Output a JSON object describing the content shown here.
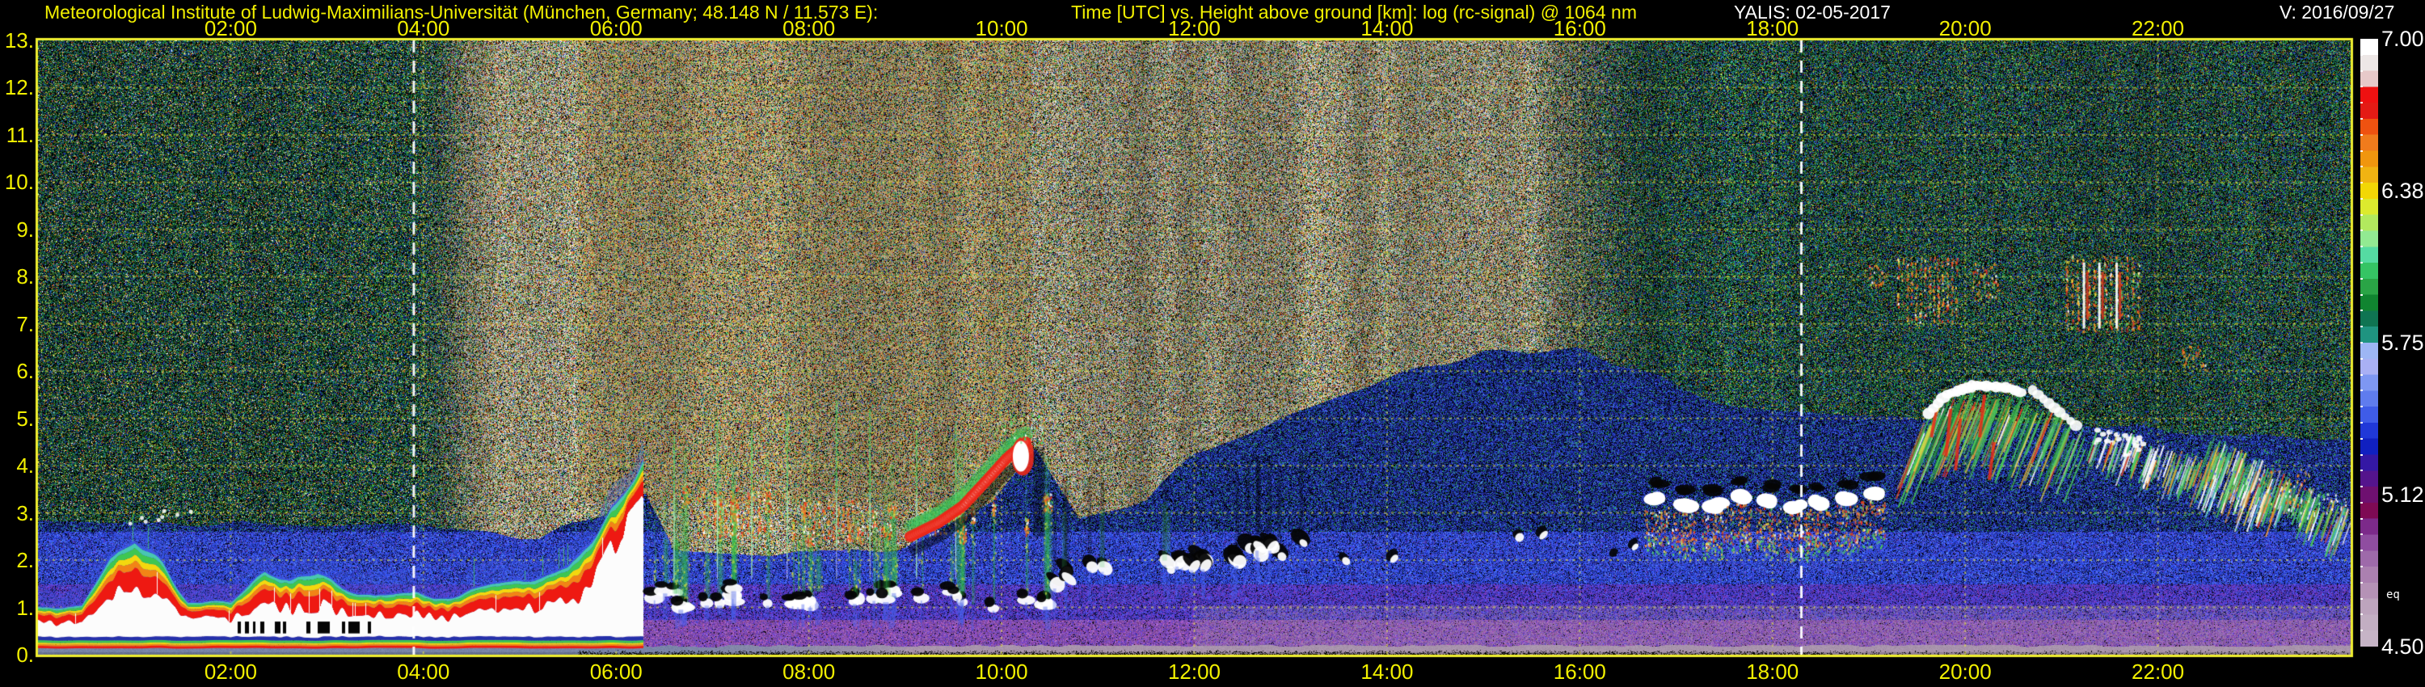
{
  "header": {
    "station_title": "Meteorological Institute of Ludwig-Maximilians-Universität (München, Germany; 48.148 N / 11.573 E):",
    "plot_title": "Time [UTC] vs. Height above ground [km]: log (rc-signal) @ 1064 nm",
    "instrument_label": "YALIS: 02-05-2017",
    "version_label": "V: 2016/09/27"
  },
  "colors": {
    "axis_yellow": "#f2f000",
    "text_white": "#ffffff",
    "background": "#000000",
    "grid": "rgba(240,240,70,0.55)",
    "sun_line": "#ffffff",
    "plot_border": "#f0ef30"
  },
  "chart_data": {
    "type": "heatmap",
    "title": "Time [UTC] vs. Height above ground [km]: log (rc-signal) @ 1064 nm",
    "instrument": "YALIS",
    "date": "02-05-2017",
    "x_axis": {
      "unit": "UTC",
      "range_hours": [
        0,
        24
      ],
      "tick_step_hours": 2,
      "tick_labels": [
        "02:00",
        "04:00",
        "06:00",
        "08:00",
        "10:00",
        "12:00",
        "14:00",
        "16:00",
        "18:00",
        "20:00",
        "22:00"
      ]
    },
    "y_axis": {
      "unit": "km",
      "range_km": [
        0,
        13
      ],
      "tick_labels": [
        "13.",
        "12.",
        "11.",
        "10.",
        "9.",
        "8.",
        "7.",
        "6.",
        "5.",
        "4.",
        "3.",
        "2.",
        "1.",
        "0."
      ]
    },
    "colorbar": {
      "quantity": "log (rc-signal) @ 1064 nm",
      "min": 4.5,
      "max": 7.0,
      "tick_labels": [
        "7.00",
        "6.38",
        "5.75",
        "5.12",
        "4.50"
      ],
      "side_label": "eq",
      "colors_top_to_bottom": [
        "#ffffff",
        "#ede7e6",
        "#e7c9c9",
        "#ee1111",
        "#e31b15",
        "#ef5210",
        "#f07b1c",
        "#f0960e",
        "#f0b312",
        "#f2d706",
        "#dcea2e",
        "#b2e95e",
        "#92ea92",
        "#55dba2",
        "#35c464",
        "#2aa446",
        "#108430",
        "#0f7452",
        "#1f9480",
        "#9db6f4",
        "#a9b0f4",
        "#7e97f2",
        "#5f7cee",
        "#3f5ce8",
        "#2038d8",
        "#1020c0",
        "#3418a4",
        "#54148c",
        "#6e1070",
        "#7e0a54",
        "#7c2a8a",
        "#8f4da0",
        "#9e6aaa",
        "#ab80b0",
        "#b592b6",
        "#bda4bd",
        "#c2aec2",
        "#c6b4c6"
      ]
    },
    "daylight": {
      "sunrise_utc": 3.9,
      "sunset_utc": 18.3
    },
    "grid": {
      "x_step_hours": 2,
      "y_step_km": 1,
      "style": "dashed-yellow"
    },
    "signal_top_km_by_hour": [
      [
        0,
        2.7
      ],
      [
        3.8,
        2.7
      ],
      [
        4.6,
        2.5
      ],
      [
        5.2,
        2.4
      ],
      [
        6.3,
        3.3
      ],
      [
        6.6,
        2.2
      ],
      [
        8,
        2.05
      ],
      [
        9.0,
        2.2
      ],
      [
        9.9,
        3.2
      ],
      [
        10.35,
        4.3
      ],
      [
        10.8,
        2.8
      ],
      [
        11.5,
        3.2
      ],
      [
        12,
        4.2
      ],
      [
        13,
        5.0
      ],
      [
        14,
        5.8
      ],
      [
        15,
        6.3
      ],
      [
        16,
        6.4
      ],
      [
        16.8,
        5.8
      ],
      [
        17.5,
        5.2
      ],
      [
        18.5,
        5.0
      ],
      [
        20,
        4.9
      ],
      [
        22,
        4.7
      ],
      [
        24,
        4.4
      ]
    ],
    "features": {
      "nocturnal_aerosol_layer": {
        "hours": [
          0,
          6.28
        ],
        "top_km": [
          [
            0,
            1.0
          ],
          [
            0.45,
            1.05
          ],
          [
            0.75,
            2.1
          ],
          [
            1.0,
            2.45
          ],
          [
            1.3,
            1.9
          ],
          [
            1.55,
            1.15
          ],
          [
            2.0,
            1.1
          ],
          [
            2.35,
            1.75
          ],
          [
            2.6,
            1.6
          ],
          [
            2.9,
            1.85
          ],
          [
            3.15,
            1.4
          ],
          [
            3.5,
            1.2
          ],
          [
            3.9,
            1.3
          ],
          [
            4.3,
            1.25
          ],
          [
            4.7,
            1.45
          ],
          [
            5.1,
            1.6
          ],
          [
            5.5,
            1.9
          ],
          [
            5.8,
            2.6
          ],
          [
            6.0,
            3.2
          ],
          [
            6.15,
            3.75
          ],
          [
            6.28,
            4.05
          ]
        ]
      },
      "morning_convection": {
        "hours": [
          6.3,
          10.6
        ],
        "cloud_base_km": [
          0.95,
          1.4
        ],
        "tops_km": [
          1.9,
          3.5
        ],
        "red_caps": [
          [
            6.85,
            7.65,
            2.5,
            3.55
          ],
          [
            7.95,
            8.65,
            2.4,
            3.3
          ],
          [
            9.25,
            9.65,
            2.5,
            3.2
          ]
        ],
        "rising_plume": [
          [
            9.05,
            2.5
          ],
          [
            9.35,
            2.8
          ],
          [
            9.6,
            3.15
          ],
          [
            9.85,
            3.7
          ],
          [
            10.05,
            4.15
          ],
          [
            10.25,
            4.5
          ]
        ]
      },
      "midday_cumulus": {
        "hours": [
          10.38,
          13.25
        ],
        "base_km": [
          1.6,
          2.3
        ]
      },
      "afternoon_sparse_clouds": [
        [
          13.55,
          2.0
        ],
        [
          14.05,
          2.05
        ],
        [
          15.35,
          2.5
        ],
        [
          15.6,
          2.55
        ],
        [
          16.35,
          2.1
        ],
        [
          16.55,
          2.3
        ]
      ],
      "evening_cloud_band": {
        "hours": [
          16.8,
          19.3
        ],
        "core_km": [
          2.9,
          3.45
        ]
      },
      "cirrus_patches": [
        [
          19.0,
          19.18,
          7.75,
          8.3
        ],
        [
          19.3,
          19.95,
          7.05,
          8.45
        ],
        [
          20.08,
          20.35,
          7.55,
          8.3
        ],
        [
          21.05,
          21.85,
          6.85,
          8.45
        ],
        [
          22.25,
          22.5,
          6.05,
          6.55
        ]
      ],
      "fallstreak_cloud": {
        "hours": [
          19.55,
          21.25
        ],
        "top_km": [
          [
            19.55,
            4.9
          ],
          [
            19.8,
            5.45
          ],
          [
            20.1,
            5.65
          ],
          [
            20.45,
            5.6
          ],
          [
            20.75,
            5.35
          ],
          [
            21.05,
            5.15
          ],
          [
            21.25,
            4.9
          ]
        ],
        "bottom_km": 3.4
      },
      "descending_bands": [
        {
          "from": [
            21.35,
            4.7
          ],
          "to": [
            23.3,
            3.35
          ]
        },
        {
          "from": [
            22.55,
            4.5
          ],
          "to": [
            24.0,
            2.85
          ]
        }
      ]
    }
  }
}
